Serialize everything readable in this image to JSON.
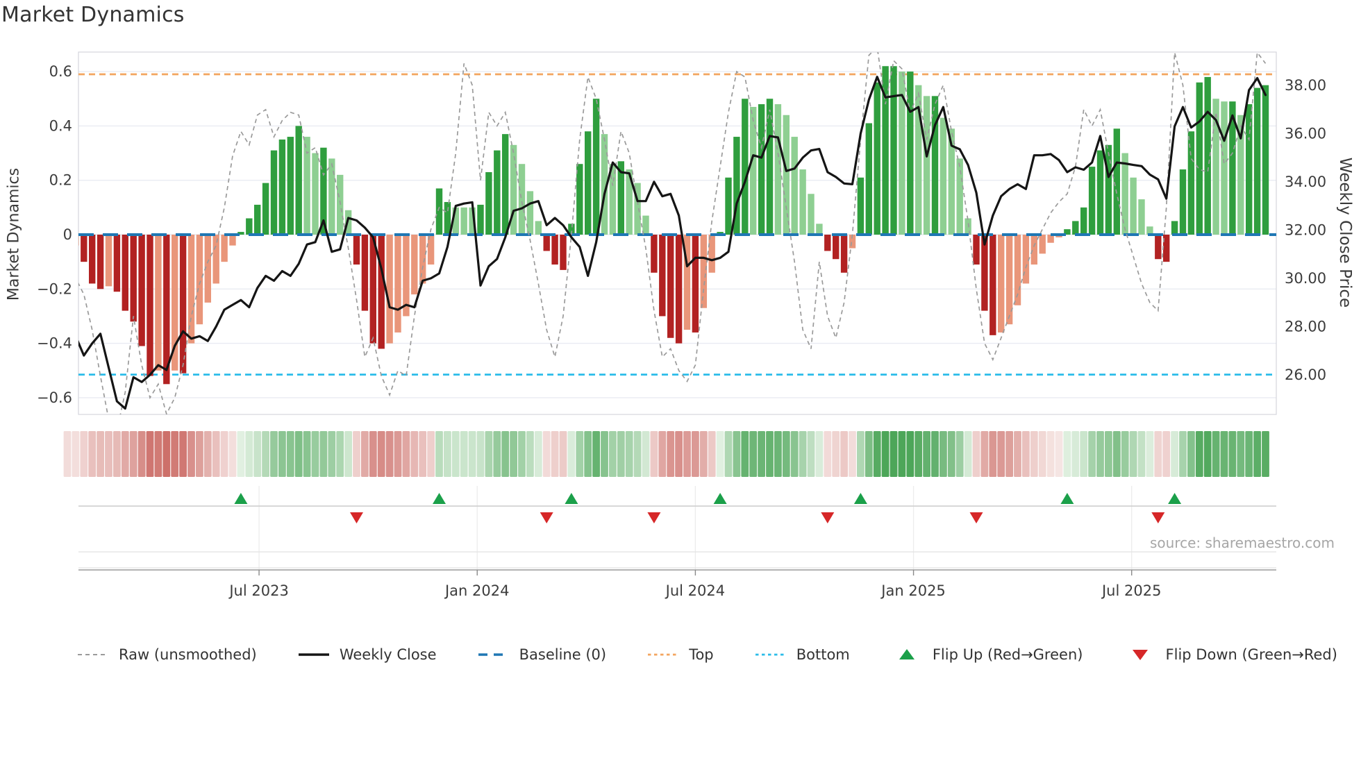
{
  "title": "Market Dynamics",
  "source_text": "source: sharemaestro.com",
  "axes": {
    "left_label": "Market Dynamics",
    "right_label": "Weekly Close Price",
    "left_ticks": [
      "0.6",
      "0.4",
      "0.2",
      "0",
      "−0.2",
      "−0.4",
      "−0.6"
    ],
    "left_tick_values": [
      0.6,
      0.4,
      0.2,
      0,
      -0.2,
      -0.4,
      -0.6
    ],
    "right_ticks": [
      "38.00",
      "36.00",
      "34.00",
      "32.00",
      "30.00",
      "28.00",
      "26.00"
    ],
    "right_tick_values": [
      38,
      36,
      34,
      32,
      30,
      28,
      26
    ],
    "x_tick_labels": [
      "Jul 2023",
      "Jan 2024",
      "Jul 2024",
      "Jan 2025",
      "Jul 2025"
    ],
    "x_tick_week_indices": [
      23.2,
      49.6,
      76.0,
      102.4,
      128.8
    ]
  },
  "legend": [
    {
      "label": "Raw (unsmoothed)",
      "swatch": "dash-gray",
      "color": "#9a9a9a"
    },
    {
      "label": "Weekly Close",
      "swatch": "solid-black",
      "color": "#151515"
    },
    {
      "label": "Baseline (0)",
      "swatch": "dash-blue",
      "color": "#1f77b4"
    },
    {
      "label": "Top",
      "swatch": "dot-orange",
      "color": "#f3a55f"
    },
    {
      "label": "Bottom",
      "swatch": "dot-cyan",
      "color": "#2bbce9"
    },
    {
      "label": "Flip Up (Red→Green)",
      "swatch": "tri-up",
      "color": "#1ba04a"
    },
    {
      "label": "Flip Down (Green→Red)",
      "swatch": "tri-down",
      "color": "#d62728"
    }
  ],
  "colors": {
    "bar_pos_dark": "#2f9e3e",
    "bar_pos_light": "#8ecf92",
    "bar_neg_dark": "#b22222",
    "bar_neg_light": "#e9967a",
    "raw_line": "#9a9a9a",
    "close_line": "#151515",
    "baseline": "#1f77b4",
    "top_line": "#f3a55f",
    "bottom_line": "#2bbce9",
    "flip_up": "#1ba04a",
    "flip_down": "#d62728",
    "grid": "#e9ebf2",
    "spine": "#d4d6dd",
    "heat_pos_strong": "#4da659",
    "heat_pos_weak": "#e3f1e3",
    "heat_neg_strong": "#c9655f",
    "heat_neg_weak": "#f6e7e5",
    "tick_text": "#3c3c3c"
  },
  "chart_data": {
    "type": "combo: weekly oscillator bars + heatmap strip + flip markers, with raw dashed line (left axis) and weekly close price line (right axis)",
    "n_weeks": 146,
    "x_unit": "week index (weekly bars, ~Feb 2023 – Oct 2025)",
    "left_axis": {
      "label": "Market Dynamics",
      "ylim": [
        -0.672,
        0.673
      ],
      "gridlines": [
        0.6,
        0.4,
        0.2,
        0,
        -0.2,
        -0.4,
        -0.6
      ]
    },
    "right_axis": {
      "label": "Weekly Close Price",
      "ylim": [
        24.25,
        39.38
      ],
      "ticks": [
        38,
        36,
        34,
        32,
        30,
        28,
        26
      ]
    },
    "reference_lines": {
      "baseline": 0,
      "top": 0.59,
      "bottom": -0.515
    },
    "flip_up_week_indices": [
      21,
      45,
      61,
      79,
      96,
      121,
      134
    ],
    "flip_down_week_indices": [
      35,
      58,
      71,
      92,
      110,
      132
    ],
    "series": [
      {
        "name": "Smoothed oscillator (bars, green=positive/red=negative, dark=strengthening/light=fading)",
        "values": [
          -0.05,
          -0.04,
          -0.1,
          -0.18,
          -0.2,
          -0.19,
          -0.21,
          -0.28,
          -0.32,
          -0.41,
          -0.52,
          -0.5,
          -0.55,
          -0.5,
          -0.51,
          -0.4,
          -0.33,
          -0.25,
          -0.18,
          -0.1,
          -0.04,
          0.01,
          0.06,
          0.11,
          0.19,
          0.31,
          0.35,
          0.36,
          0.4,
          0.36,
          0.3,
          0.32,
          0.28,
          0.22,
          0.09,
          -0.11,
          -0.28,
          -0.4,
          -0.42,
          -0.4,
          -0.36,
          -0.3,
          -0.22,
          -0.18,
          -0.11,
          0.17,
          0.12,
          0.1,
          0.1,
          0.1,
          0.11,
          0.23,
          0.31,
          0.37,
          0.33,
          0.26,
          0.16,
          0.05,
          -0.06,
          -0.11,
          -0.13,
          0.04,
          0.26,
          0.38,
          0.5,
          0.37,
          0.26,
          0.27,
          0.24,
          0.19,
          0.07,
          -0.14,
          -0.3,
          -0.38,
          -0.4,
          -0.35,
          -0.36,
          -0.27,
          -0.14,
          0.01,
          0.21,
          0.36,
          0.5,
          0.47,
          0.48,
          0.5,
          0.48,
          0.44,
          0.36,
          0.24,
          0.15,
          0.04,
          -0.06,
          -0.09,
          -0.14,
          -0.05,
          0.21,
          0.41,
          0.56,
          0.62,
          0.62,
          0.6,
          0.6,
          0.55,
          0.51,
          0.51,
          0.43,
          0.39,
          0.28,
          0.06,
          -0.11,
          -0.28,
          -0.37,
          -0.36,
          -0.33,
          -0.26,
          -0.18,
          -0.11,
          -0.07,
          -0.03,
          -0.01,
          0.02,
          0.05,
          0.1,
          0.25,
          0.31,
          0.33,
          0.39,
          0.3,
          0.21,
          0.13,
          0.03,
          -0.09,
          -0.1,
          0.05,
          0.24,
          0.38,
          0.56,
          0.58,
          0.5,
          0.49,
          0.49,
          0.44,
          0.48,
          0.54,
          0.55
        ]
      },
      {
        "name": "Bar shade pattern (d=dark, l=light)",
        "pattern": "dldddldddddldldllllllddddddddlldlllddddllllllddlllddddlllldddddddlldlllddddldllddddlddlllllldddldddddldlldlllldddllllllllddddddd lllldddddddlldlddd"
      },
      {
        "name": "Raw (unsmoothed)",
        "values": [
          -0.1,
          -0.16,
          -0.22,
          -0.35,
          -0.52,
          -0.68,
          -0.72,
          -0.58,
          -0.3,
          -0.48,
          -0.6,
          -0.55,
          -0.66,
          -0.6,
          -0.48,
          -0.3,
          -0.18,
          -0.1,
          -0.04,
          0.1,
          0.29,
          0.38,
          0.33,
          0.44,
          0.46,
          0.36,
          0.42,
          0.45,
          0.44,
          0.3,
          0.32,
          0.22,
          0.26,
          0.12,
          -0.05,
          -0.24,
          -0.45,
          -0.38,
          -0.52,
          -0.59,
          -0.5,
          -0.52,
          -0.3,
          -0.12,
          0.02,
          0.1,
          0.08,
          0.3,
          0.63,
          0.55,
          0.2,
          0.45,
          0.4,
          0.45,
          0.3,
          0.12,
          -0.02,
          -0.18,
          -0.35,
          -0.45,
          -0.3,
          0.0,
          0.35,
          0.58,
          0.5,
          0.35,
          0.18,
          0.38,
          0.3,
          0.12,
          -0.05,
          -0.28,
          -0.45,
          -0.42,
          -0.5,
          -0.54,
          -0.48,
          -0.2,
          0.05,
          0.25,
          0.45,
          0.6,
          0.58,
          0.42,
          0.32,
          0.46,
          0.3,
          0.1,
          -0.1,
          -0.35,
          -0.42,
          -0.1,
          -0.3,
          -0.38,
          -0.25,
          0.0,
          0.35,
          0.66,
          0.69,
          0.48,
          0.64,
          0.61,
          0.45,
          0.52,
          0.35,
          0.48,
          0.55,
          0.38,
          0.25,
          0.05,
          -0.2,
          -0.4,
          -0.46,
          -0.38,
          -0.3,
          -0.22,
          -0.12,
          -0.04,
          0.02,
          0.08,
          0.12,
          0.15,
          0.25,
          0.46,
          0.4,
          0.46,
          0.3,
          0.15,
          0.02,
          -0.08,
          -0.18,
          -0.25,
          -0.28,
          0.1,
          0.67,
          0.55,
          0.28,
          0.24,
          0.23,
          0.45,
          0.26,
          0.3,
          0.4,
          0.35,
          0.67,
          0.63
        ]
      },
      {
        "name": "Weekly Close (right axis)",
        "values": [
          27.4,
          27.6,
          26.8,
          27.3,
          27.7,
          26.3,
          24.9,
          24.6,
          25.9,
          25.7,
          26.0,
          26.4,
          26.2,
          27.2,
          27.8,
          27.5,
          27.6,
          27.4,
          28.0,
          28.7,
          28.9,
          29.1,
          28.8,
          29.6,
          30.1,
          29.9,
          30.3,
          30.1,
          30.6,
          31.4,
          31.5,
          32.4,
          31.1,
          31.2,
          32.5,
          32.4,
          32.1,
          31.7,
          30.4,
          28.8,
          28.7,
          28.9,
          28.8,
          29.9,
          30.0,
          30.2,
          31.3,
          33.0,
          33.1,
          33.15,
          29.7,
          30.5,
          30.8,
          31.7,
          32.8,
          32.9,
          33.1,
          33.2,
          32.2,
          32.5,
          32.2,
          31.7,
          31.3,
          30.1,
          31.5,
          33.5,
          34.8,
          34.4,
          34.35,
          33.2,
          33.2,
          34.0,
          33.4,
          33.5,
          32.6,
          30.5,
          30.85,
          30.85,
          30.75,
          30.85,
          31.1,
          33.1,
          34.0,
          35.1,
          35.0,
          35.9,
          35.84,
          34.45,
          34.55,
          35.0,
          35.3,
          35.36,
          34.4,
          34.2,
          33.93,
          33.9,
          36.0,
          37.4,
          38.35,
          37.5,
          37.55,
          37.6,
          36.9,
          37.1,
          35.05,
          36.35,
          37.1,
          35.5,
          35.35,
          34.7,
          33.55,
          31.4,
          32.6,
          33.4,
          33.7,
          33.9,
          33.7,
          35.1,
          35.1,
          35.15,
          34.9,
          34.4,
          34.6,
          34.5,
          34.8,
          35.9,
          34.2,
          34.8,
          34.76,
          34.7,
          34.65,
          34.3,
          34.1,
          33.3,
          36.3,
          37.1,
          36.25,
          36.5,
          36.9,
          36.56,
          35.7,
          36.75,
          35.8,
          37.8,
          38.3,
          37.6
        ]
      }
    ],
    "heatmap_strip": "one cell per week; red shades for negative oscillator, green shades for positive; intensity proportional to |value|",
    "legend_position": "bottom row, horizontal"
  }
}
